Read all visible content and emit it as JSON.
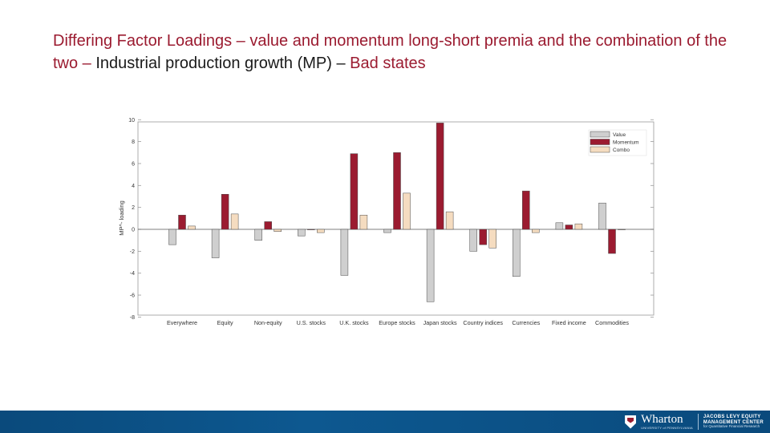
{
  "title": {
    "seg1": "Differing Factor Loadings – value and momentum long-short premia and the combination of the two – ",
    "seg2": "Industrial production growth (MP) – ",
    "seg3": "Bad states"
  },
  "footer": {
    "logo_name": "Wharton",
    "logo_sub": "UNIVERSITY of PENNSYLVANIA",
    "center_line1": "JACOBS LEVY EQUITY",
    "center_line2": "MANAGEMENT CENTER",
    "center_line3": "for Quantitative Financial Research"
  },
  "colors": {
    "title_red": "#9b1b30",
    "value": "#cfcfcf",
    "momentum": "#9b1b30",
    "combo": "#f5dcc0",
    "footer_bar": "#0d5890"
  },
  "chart_data": {
    "type": "bar",
    "ylabel": "MP^- loading",
    "ylim": [
      -8,
      10
    ],
    "yticks": [
      10,
      8,
      6,
      4,
      2,
      0,
      -2,
      -4,
      -6,
      -8
    ],
    "grid": false,
    "legend_position": "top-right",
    "categories": [
      "Everywhere",
      "Equity",
      "Non-equity",
      "U.S. stocks",
      "U.K. stocks",
      "Europe stocks",
      "Japan stocks",
      "Country indices",
      "Currencies",
      "Fixed income",
      "Commodities"
    ],
    "series": [
      {
        "name": "Value",
        "color": "#cfcfcf",
        "values": [
          -1.4,
          -2.6,
          -1.0,
          -0.6,
          -4.2,
          -0.3,
          -6.6,
          -2.0,
          -4.3,
          0.6,
          2.4
        ]
      },
      {
        "name": "Momentum",
        "color": "#9b1b30",
        "values": [
          1.3,
          3.2,
          0.7,
          0.0,
          6.9,
          7.0,
          9.7,
          -1.4,
          3.5,
          0.4,
          -2.2
        ]
      },
      {
        "name": "Combo",
        "color": "#f5dcc0",
        "values": [
          0.3,
          1.4,
          -0.2,
          -0.3,
          1.3,
          3.3,
          1.6,
          -1.7,
          -0.3,
          0.5,
          0.0
        ]
      }
    ]
  }
}
